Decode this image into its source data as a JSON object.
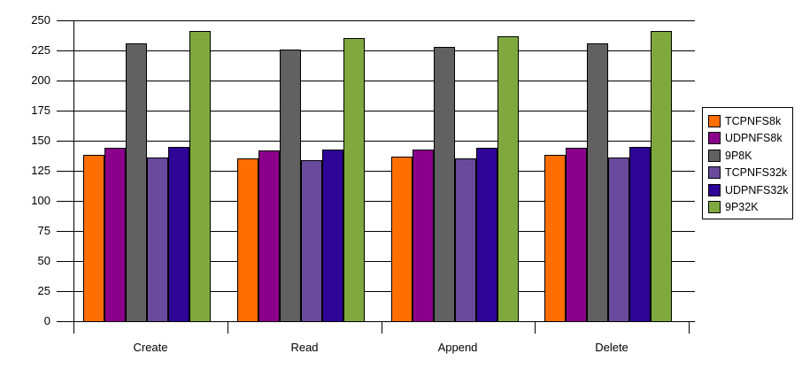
{
  "chart_data": {
    "type": "bar",
    "title": "",
    "xlabel": "",
    "ylabel": "",
    "categories": [
      "Create",
      "Read",
      "Append",
      "Delete"
    ],
    "series": [
      {
        "name": "TCPNFS8k",
        "color": "#FF6E00",
        "values": [
          138,
          135,
          137,
          138
        ]
      },
      {
        "name": "UDPNFS8k",
        "color": "#8B008B",
        "values": [
          144,
          142,
          143,
          144
        ]
      },
      {
        "name": "9P8K",
        "color": "#616161",
        "values": [
          231,
          226,
          228,
          231
        ]
      },
      {
        "name": "TCPNFS32k",
        "color": "#6A4A9C",
        "values": [
          136,
          134,
          135,
          136
        ]
      },
      {
        "name": "UDPNFS32k",
        "color": "#2E0596",
        "values": [
          145,
          143,
          144,
          145
        ]
      },
      {
        "name": "9P32K",
        "color": "#7FA93F",
        "values": [
          241,
          235,
          237,
          241
        ]
      }
    ],
    "ylim": [
      0,
      250
    ],
    "ytick_step": 25,
    "grid": true,
    "legend_position": "right",
    "axis_color": "#000000",
    "background_color": "#FFFFFF"
  }
}
